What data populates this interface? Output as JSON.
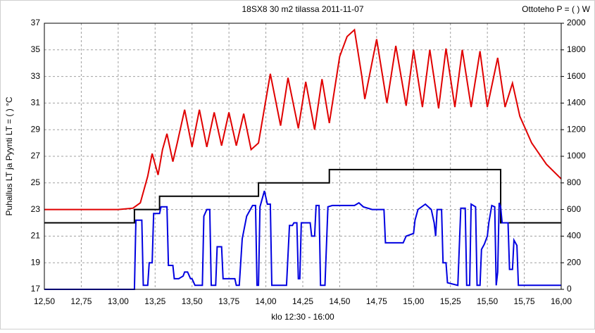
{
  "chart_data": {
    "type": "line",
    "title": "18SX8 30 m2 tilassa 2011-11-07",
    "y2_title": "Ottoteho P = ( ) W",
    "ylabel": "Puhallus LT ja Pyynti LT = ( ) °C",
    "xlabel": "klo 12:30 - 16:00",
    "grid": true,
    "xlim": [
      12.5,
      16.0
    ],
    "xticks": [
      {
        "value": 12.5,
        "label": "12,50"
      },
      {
        "value": 12.75,
        "label": "12,75"
      },
      {
        "value": 13.0,
        "label": "13,00"
      },
      {
        "value": 13.25,
        "label": "13,25"
      },
      {
        "value": 13.5,
        "label": "13,50"
      },
      {
        "value": 13.75,
        "label": "13,75"
      },
      {
        "value": 14.0,
        "label": "14,00"
      },
      {
        "value": 14.25,
        "label": "14,25"
      },
      {
        "value": 14.5,
        "label": "14,50"
      },
      {
        "value": 14.75,
        "label": "14,75"
      },
      {
        "value": 15.0,
        "label": "15,00"
      },
      {
        "value": 15.25,
        "label": "15,25"
      },
      {
        "value": 15.5,
        "label": "15,50"
      },
      {
        "value": 15.75,
        "label": "15,75"
      },
      {
        "value": 16.0,
        "label": "16,00"
      }
    ],
    "ylim": [
      17,
      37
    ],
    "yticks": [
      17,
      19,
      21,
      23,
      25,
      27,
      29,
      31,
      33,
      35,
      37
    ],
    "y2lim": [
      0,
      2000
    ],
    "y2ticks": [
      0,
      200,
      400,
      600,
      800,
      1000,
      1200,
      1400,
      1600,
      1800,
      2000
    ],
    "series": [
      {
        "color": "#e00000",
        "axis": "y",
        "x": [
          12.5,
          13.0,
          13.1,
          13.15,
          13.2,
          13.23,
          13.27,
          13.3,
          13.33,
          13.37,
          13.4,
          13.45,
          13.5,
          13.55,
          13.6,
          13.65,
          13.7,
          13.75,
          13.8,
          13.85,
          13.9,
          13.95,
          14.03,
          14.1,
          14.15,
          14.22,
          14.27,
          14.33,
          14.38,
          14.43,
          14.5,
          14.55,
          14.6,
          14.65,
          14.67,
          14.75,
          14.82,
          14.88,
          14.95,
          15.0,
          15.06,
          15.11,
          15.17,
          15.22,
          15.28,
          15.33,
          15.39,
          15.45,
          15.5,
          15.57,
          15.62,
          15.67,
          15.72,
          15.8,
          15.9,
          16.0
        ],
        "values": [
          23.0,
          23.0,
          23.1,
          23.5,
          25.5,
          27.2,
          25.6,
          27.5,
          28.7,
          26.6,
          28.0,
          30.5,
          27.7,
          30.5,
          27.7,
          30.3,
          27.8,
          30.3,
          27.8,
          30.2,
          27.5,
          28.0,
          33.2,
          29.3,
          32.9,
          29.1,
          32.6,
          29.0,
          32.8,
          29.5,
          34.5,
          36.0,
          36.5,
          33.0,
          31.3,
          35.8,
          31.0,
          35.3,
          30.8,
          35.0,
          30.7,
          35.0,
          30.6,
          35.1,
          30.7,
          35.0,
          30.7,
          34.9,
          30.7,
          34.4,
          30.7,
          32.5,
          30.0,
          28.0,
          26.4,
          25.3
        ]
      },
      {
        "color": "#000000",
        "axis": "y",
        "x": [
          12.5,
          13.11,
          13.11,
          13.28,
          13.28,
          13.95,
          13.95,
          14.43,
          14.43,
          15.59,
          15.59,
          16.0
        ],
        "values": [
          22,
          22,
          23,
          23,
          24,
          24,
          25,
          25,
          26,
          26,
          22,
          22
        ]
      },
      {
        "color": "#0000e0",
        "axis": "y2",
        "x": [
          12.5,
          13.11,
          13.12,
          13.16,
          13.17,
          13.2,
          13.21,
          13.23,
          13.24,
          13.28,
          13.29,
          13.33,
          13.34,
          13.37,
          13.38,
          13.41,
          13.44,
          13.45,
          13.47,
          13.49,
          13.5,
          13.52,
          13.57,
          13.58,
          13.6,
          13.62,
          13.63,
          13.66,
          13.67,
          13.7,
          13.71,
          13.79,
          13.8,
          13.82,
          13.84,
          13.87,
          13.91,
          13.93,
          13.94,
          13.95,
          13.96,
          13.98,
          13.99,
          14.01,
          14.03,
          14.04,
          14.14,
          14.16,
          14.18,
          14.19,
          14.21,
          14.22,
          14.23,
          14.24,
          14.3,
          14.31,
          14.33,
          14.34,
          14.36,
          14.37,
          14.4,
          14.42,
          14.45,
          14.6,
          14.63,
          14.66,
          14.72,
          14.8,
          14.81,
          14.93,
          14.95,
          15.0,
          15.01,
          15.03,
          15.08,
          15.12,
          15.14,
          15.15,
          15.16,
          15.19,
          15.2,
          15.22,
          15.23,
          15.3,
          15.32,
          15.35,
          15.36,
          15.38,
          15.39,
          15.42,
          15.43,
          15.45,
          15.46,
          15.48,
          15.5,
          15.51,
          15.53,
          15.55,
          15.56,
          15.57,
          15.58,
          15.59,
          15.6,
          15.64,
          15.65,
          15.67,
          15.68,
          15.7,
          15.71,
          16.0
        ],
        "values": [
          0,
          0,
          520,
          520,
          30,
          30,
          200,
          200,
          570,
          570,
          620,
          620,
          180,
          180,
          80,
          80,
          100,
          130,
          130,
          80,
          80,
          30,
          30,
          550,
          600,
          600,
          30,
          30,
          320,
          320,
          80,
          80,
          30,
          30,
          380,
          550,
          630,
          630,
          30,
          30,
          620,
          700,
          740,
          640,
          640,
          30,
          30,
          480,
          480,
          500,
          500,
          80,
          80,
          500,
          500,
          400,
          400,
          630,
          630,
          30,
          30,
          620,
          630,
          630,
          650,
          620,
          600,
          600,
          350,
          350,
          400,
          420,
          520,
          600,
          640,
          600,
          500,
          400,
          600,
          600,
          200,
          200,
          50,
          30,
          610,
          610,
          30,
          30,
          640,
          620,
          30,
          30,
          300,
          340,
          400,
          500,
          630,
          620,
          30,
          130,
          650,
          620,
          500,
          500,
          150,
          150,
          370,
          330,
          30,
          30
        ]
      }
    ]
  }
}
